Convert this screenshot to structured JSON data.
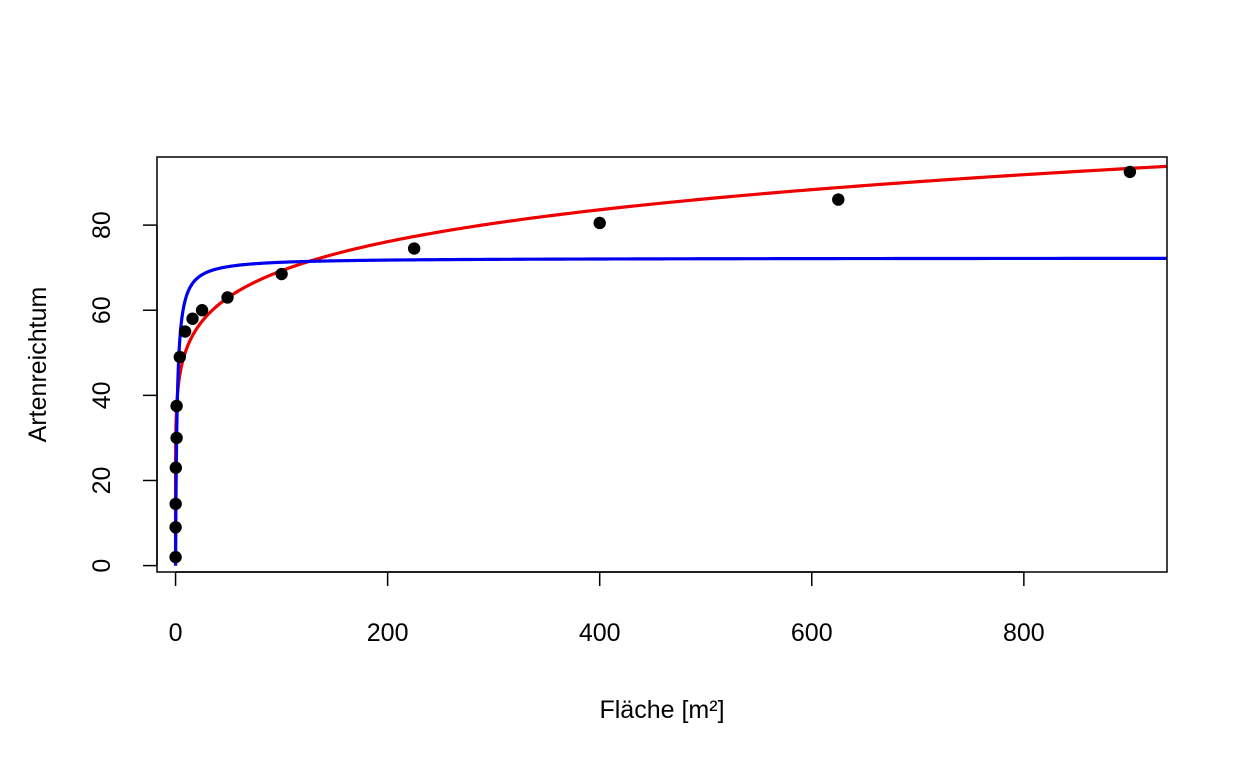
{
  "chart_data": {
    "type": "scatter",
    "title": "",
    "xlabel": "Fläche [m²]",
    "ylabel": "Artenreichtum",
    "xlim": [
      -17.5,
      935
    ],
    "ylim": [
      -1.5,
      96
    ],
    "x_ticks": [
      0,
      200,
      400,
      600,
      800
    ],
    "y_ticks": [
      0,
      20,
      40,
      60,
      80
    ],
    "x_tick_labels": [
      "0",
      "200",
      "400",
      "600",
      "800"
    ],
    "y_tick_labels": [
      "0",
      "20",
      "40",
      "60",
      "80"
    ],
    "grid": false,
    "legend": "none",
    "points": [
      {
        "x": 0.01,
        "y": 2
      },
      {
        "x": 0.04,
        "y": 9
      },
      {
        "x": 0.09,
        "y": 14.5
      },
      {
        "x": 0.25,
        "y": 23
      },
      {
        "x": 1,
        "y": 30
      },
      {
        "x": 1,
        "y": 37.5
      },
      {
        "x": 4,
        "y": 49
      },
      {
        "x": 9,
        "y": 55
      },
      {
        "x": 16,
        "y": 58
      },
      {
        "x": 25,
        "y": 60
      },
      {
        "x": 49,
        "y": 63
      },
      {
        "x": 100,
        "y": 68.5
      },
      {
        "x": 225,
        "y": 74.5
      },
      {
        "x": 400,
        "y": 80.5
      },
      {
        "x": 625,
        "y": 86
      },
      {
        "x": 900,
        "y": 92.5
      }
    ],
    "series": [
      {
        "kind": "points",
        "color": "#000000"
      },
      {
        "kind": "curve",
        "color": "#ee0000",
        "model": "power",
        "a": 37.1,
        "b": 0.1356
      },
      {
        "kind": "curve",
        "color": "#0000ee",
        "model": "saturation",
        "smax": 72.3,
        "k": 1.45
      }
    ]
  }
}
